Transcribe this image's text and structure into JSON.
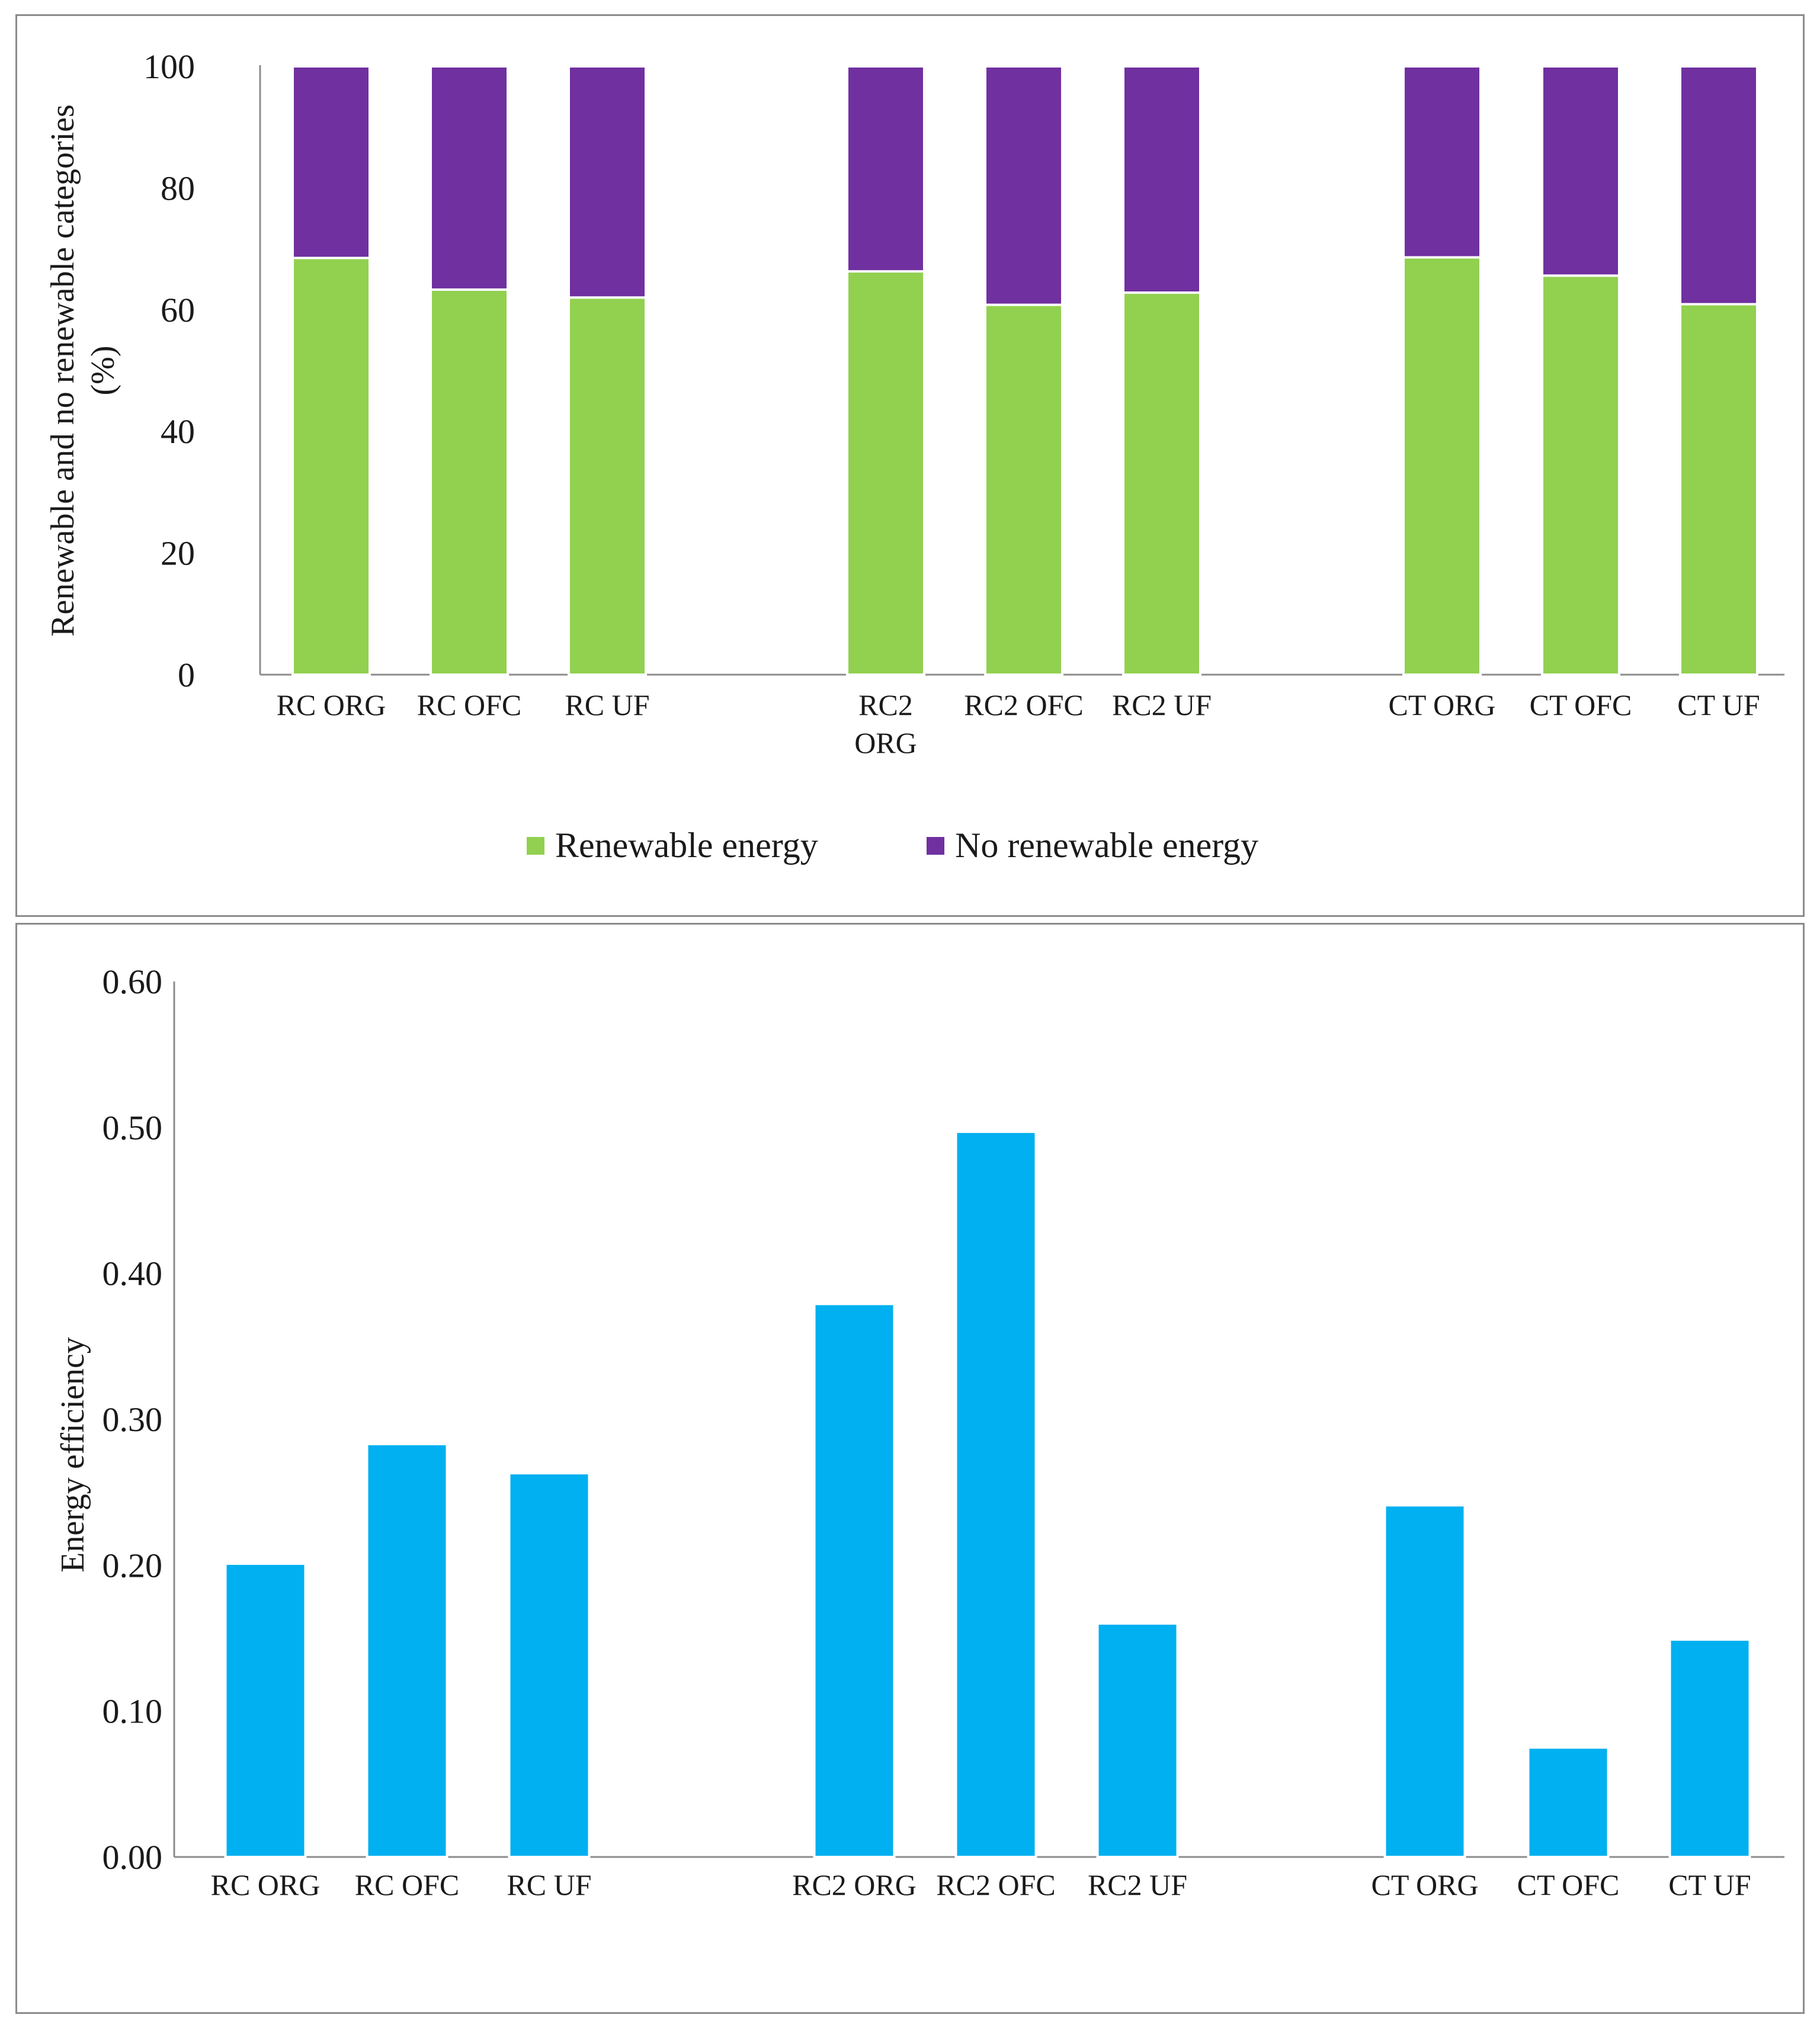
{
  "chart_data": [
    {
      "type": "bar",
      "stacked": true,
      "title": "",
      "ylabel": "Renewable and no renewable categories (%)",
      "ylabel_lines": [
        "Renewable and no renewable categories",
        "(%)"
      ],
      "xlabel": "",
      "ylim": [
        0,
        100
      ],
      "yticks": [
        "0",
        "20",
        "40",
        "60",
        "80",
        "100"
      ],
      "categories": [
        "RC ORG",
        "RC OFC",
        "RC UF",
        "RC2 ORG",
        "RC2 OFC",
        "RC2 UF",
        "CT ORG",
        "CT OFC",
        "CT UF"
      ],
      "category_label_lines": [
        [
          "RC ORG"
        ],
        [
          "RC OFC"
        ],
        [
          "RC UF"
        ],
        [
          "RC2",
          "ORG"
        ],
        [
          "RC2 OFC"
        ],
        [
          "RC2 UF"
        ],
        [
          "CT ORG"
        ],
        [
          "CT OFC"
        ],
        [
          "CT UF"
        ]
      ],
      "series": [
        {
          "name": "Renewable energy",
          "color": "#92d050",
          "values": [
            68.5,
            63.3,
            62,
            66.3,
            60.8,
            62.8,
            68.6,
            65.6,
            60.9
          ]
        },
        {
          "name": "No renewable energy",
          "color": "#7030a0",
          "values": [
            31.5,
            36.7,
            38,
            33.7,
            39.2,
            37.2,
            31.4,
            34.4,
            39.1
          ]
        }
      ],
      "legend": "bottom"
    },
    {
      "type": "bar",
      "title": "",
      "ylabel": "Energy efficiency",
      "xlabel": "",
      "ylim": [
        0,
        0.6
      ],
      "yticks": [
        "0.00",
        "0.10",
        "0.20",
        "0.30",
        "0.40",
        "0.50",
        "0.60"
      ],
      "categories": [
        "RC ORG",
        "RC OFC",
        "RC UF",
        "RC2 ORG",
        "RC2 OFC",
        "RC2 UF",
        "CT ORG",
        "CT OFC",
        "CT UF"
      ],
      "series": [
        {
          "name": "Energy efficiency",
          "color": "#00b0f0",
          "values": [
            0.201,
            0.283,
            0.263,
            0.379,
            0.497,
            0.16,
            0.241,
            0.075,
            0.149
          ]
        }
      ]
    }
  ]
}
